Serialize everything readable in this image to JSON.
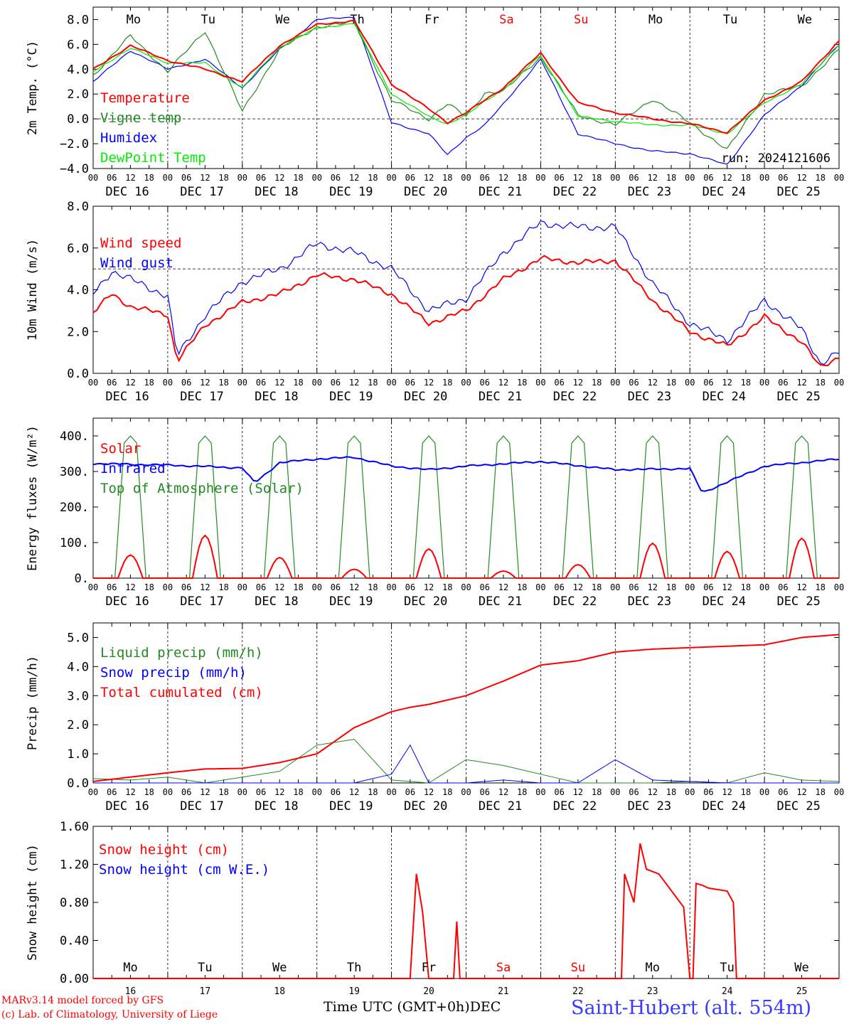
{
  "run_label": "run: 2024121606",
  "footer": {
    "model": "MARv3.14 model forced by GFS",
    "credit": "(c) Lab. of Climatology, University of Liege",
    "time_axis": "Time UTC (GMT+0h)",
    "month": "DEC",
    "station": "Saint-Hubert (alt. 554m)"
  },
  "colors": {
    "red": "#ff0000",
    "green": "#228b22",
    "blue": "#0000ff",
    "lime": "#00ee00"
  },
  "chart_data": [
    {
      "type": "line",
      "ylabel": "2m Temp. (°C)",
      "ylim": [
        -4,
        9
      ],
      "ticks": [
        "8.0",
        "6.0",
        "4.0",
        "2.0",
        "0.0",
        "−2.0",
        "−4.0"
      ],
      "tick_values": [
        8,
        6,
        4,
        2,
        0,
        -2,
        -4
      ],
      "ref_line": 0,
      "day_labels": [
        "Mo",
        "Tu",
        "We",
        "Th",
        "Fr",
        "Sa",
        "Su",
        "Mo",
        "Tu",
        "We"
      ],
      "date_labels": [
        "DEC 16",
        "DEC 17",
        "DEC 18",
        "DEC 19",
        "DEC 20",
        "DEC 21",
        "DEC 22",
        "DEC 23",
        "DEC 24",
        "DEC 25"
      ],
      "x_hours": [
        0,
        12,
        24,
        36,
        48,
        60,
        72,
        84,
        96,
        108,
        114,
        120,
        126,
        132,
        144,
        156,
        168,
        180,
        192,
        204,
        216,
        228,
        240
      ],
      "series": [
        {
          "name": "Temperature",
          "color": "red",
          "values": [
            4.0,
            5.9,
            4.7,
            4.0,
            3.0,
            5.9,
            7.6,
            7.9,
            2.8,
            0.8,
            -0.3,
            0.5,
            1.5,
            2.5,
            5.3,
            1.3,
            0.5,
            0.0,
            -0.4,
            -1.1,
            1.5,
            3.0,
            6.3
          ]
        },
        {
          "name": "Vigne temp",
          "color": "green",
          "values": [
            3.5,
            6.7,
            3.8,
            7.1,
            0.6,
            5.6,
            7.4,
            7.8,
            1.5,
            0.0,
            1.2,
            0.2,
            2.1,
            2.2,
            5.0,
            0.3,
            -0.5,
            1.6,
            -0.3,
            -2.5,
            2.0,
            2.6,
            5.6
          ]
        },
        {
          "name": "Humidex",
          "color": "blue",
          "values": [
            3.0,
            5.5,
            4.0,
            4.8,
            2.5,
            5.6,
            8.0,
            8.2,
            -0.3,
            -1.2,
            -2.9,
            -1.5,
            -0.5,
            1.2,
            4.8,
            -1.2,
            -2.0,
            -2.6,
            -2.8,
            -3.7,
            0.3,
            2.7,
            6.0
          ]
        },
        {
          "name": "DewPoint Temp",
          "color": "lime",
          "values": [
            3.8,
            5.7,
            4.5,
            4.5,
            2.5,
            5.8,
            7.3,
            7.7,
            2.0,
            0.2,
            -0.4,
            0.3,
            1.4,
            2.4,
            5.1,
            0.2,
            -0.2,
            -0.5,
            -0.5,
            -1.2,
            1.3,
            2.8,
            6.0
          ]
        }
      ]
    },
    {
      "type": "line",
      "ylabel": "10m Wind (m/s)",
      "ylim": [
        0,
        8
      ],
      "ticks": [
        "8.0",
        "6.0",
        "4.0",
        "2.0",
        "0.0"
      ],
      "tick_values": [
        8,
        6,
        4,
        2,
        0
      ],
      "ref_line": 5,
      "date_labels": [
        "DEC 16",
        "DEC 17",
        "DEC 18",
        "DEC 19",
        "DEC 20",
        "DEC 21",
        "DEC 22",
        "DEC 23",
        "DEC 24",
        "DEC 25"
      ],
      "x_hours": [
        0,
        6,
        12,
        24,
        27,
        36,
        48,
        60,
        72,
        84,
        96,
        108,
        120,
        132,
        144,
        156,
        168,
        180,
        192,
        204,
        216,
        228,
        234,
        240
      ],
      "series": [
        {
          "name": "Wind speed",
          "color": "red",
          "values": [
            2.9,
            3.8,
            3.2,
            2.8,
            0.6,
            2.3,
            3.4,
            3.8,
            4.7,
            4.5,
            3.8,
            2.4,
            3.0,
            4.5,
            5.5,
            5.3,
            5.4,
            3.5,
            2.0,
            1.3,
            2.7,
            1.5,
            0.3,
            0.8
          ]
        },
        {
          "name": "Wind gust",
          "color": "blue",
          "values": [
            3.8,
            4.9,
            4.5,
            3.7,
            0.8,
            2.8,
            4.4,
            5.0,
            6.2,
            5.8,
            5.0,
            3.0,
            3.6,
            5.8,
            7.2,
            7.0,
            7.0,
            4.3,
            2.4,
            1.6,
            3.5,
            2.1,
            0.5,
            1.0
          ]
        }
      ]
    },
    {
      "type": "line",
      "ylabel": "Energy fluxes (W/m²)",
      "ylim": [
        0,
        450
      ],
      "ticks": [
        "400.",
        "300.",
        "200.",
        "100.",
        "0."
      ],
      "tick_values": [
        400,
        300,
        200,
        100,
        0
      ],
      "date_labels": [
        "DEC 16",
        "DEC 17",
        "DEC 18",
        "DEC 19",
        "DEC 20",
        "DEC 21",
        "DEC 22",
        "DEC 23",
        "DEC 24",
        "DEC 25"
      ],
      "solar_noon_hour": 12,
      "series": [
        {
          "name": "Solar",
          "color": "red",
          "daily_peaks": [
            65,
            120,
            58,
            25,
            82,
            20,
            38,
            98,
            75,
            112
          ]
        },
        {
          "name": "Infrared",
          "color": "blue",
          "x_hours": [
            0,
            24,
            48,
            52,
            60,
            72,
            84,
            96,
            108,
            120,
            144,
            168,
            192,
            196,
            216,
            240
          ],
          "values": [
            322,
            318,
            310,
            268,
            325,
            335,
            340,
            315,
            305,
            315,
            328,
            305,
            308,
            240,
            315,
            335
          ]
        },
        {
          "name": "Top of Atmosphere (Solar)",
          "color": "green",
          "daily_peaks": [
            400,
            400,
            400,
            400,
            400,
            400,
            400,
            400,
            400,
            400
          ]
        }
      ]
    },
    {
      "type": "line",
      "ylabel": "Precip (mm/h)",
      "ylim": [
        0,
        5.5
      ],
      "ticks": [
        "5.0",
        "4.0",
        "3.0",
        "2.0",
        "1.0",
        "0.0"
      ],
      "tick_values": [
        5,
        4,
        3,
        2,
        1,
        0
      ],
      "date_labels": [
        "DEC 16",
        "DEC 17",
        "DEC 18",
        "DEC 19",
        "DEC 20",
        "DEC 21",
        "DEC 22",
        "DEC 23",
        "DEC 24",
        "DEC 25"
      ],
      "x_hours": [
        0,
        12,
        24,
        36,
        48,
        60,
        72,
        84,
        96,
        102,
        108,
        120,
        132,
        144,
        156,
        168,
        180,
        192,
        204,
        216,
        228,
        240
      ],
      "series": [
        {
          "name": "Liquid precip (mm/h)",
          "color": "green",
          "values": [
            0.15,
            0.1,
            0.2,
            0.0,
            0.2,
            0.4,
            1.3,
            1.5,
            0.1,
            0.05,
            0.0,
            0.8,
            0.6,
            0.3,
            0.0,
            0.0,
            0.0,
            0.05,
            0.0,
            0.35,
            0.1,
            0.05
          ]
        },
        {
          "name": "Snow precip (mm/h)",
          "color": "blue",
          "values": [
            0.0,
            0.0,
            0.0,
            0.0,
            0.0,
            0.0,
            0.0,
            0.0,
            0.3,
            1.3,
            0.0,
            0.0,
            0.1,
            0.0,
            0.0,
            0.8,
            0.1,
            0.05,
            0.0,
            0.0,
            0.0,
            0.0
          ]
        },
        {
          "name": "Total cumulated (cm)",
          "color": "red",
          "values": [
            0.05,
            0.2,
            0.35,
            0.48,
            0.5,
            0.7,
            1.0,
            1.9,
            2.45,
            2.6,
            2.7,
            3.0,
            3.5,
            4.05,
            4.2,
            4.5,
            4.6,
            4.65,
            4.7,
            4.75,
            5.0,
            5.1
          ]
        }
      ]
    },
    {
      "type": "line",
      "ylabel": "Snow height (cm)",
      "ylim": [
        0,
        1.6
      ],
      "ticks": [
        "1.60",
        "1.20",
        "0.80",
        "0.40",
        "0.00"
      ],
      "tick_values": [
        1.6,
        1.2,
        0.8,
        0.4,
        0
      ],
      "day_labels": [
        "Mo",
        "Tu",
        "We",
        "Th",
        "Fr",
        "Sa",
        "Su",
        "Mo",
        "Tu",
        "We"
      ],
      "date_numbers": [
        "16",
        "17",
        "18",
        "19",
        "20",
        "21",
        "22",
        "23",
        "24",
        "25"
      ],
      "x_hours": [
        0,
        102,
        104,
        106,
        108,
        116,
        117,
        118,
        170,
        171,
        174,
        176,
        178,
        182,
        190,
        192,
        193,
        194,
        196,
        198,
        204,
        206,
        207,
        240
      ],
      "series": [
        {
          "name": "Snow height (cm)",
          "color": "red",
          "values": [
            0,
            0,
            1.1,
            0.7,
            0,
            0,
            0.6,
            0,
            0,
            1.1,
            0.8,
            1.42,
            1.15,
            1.1,
            0.75,
            0,
            0,
            1.0,
            0.98,
            0.95,
            0.92,
            0.8,
            0,
            0
          ]
        },
        {
          "name": "Snow height (cm W.E.)",
          "color": "blue",
          "values": []
        }
      ]
    }
  ]
}
